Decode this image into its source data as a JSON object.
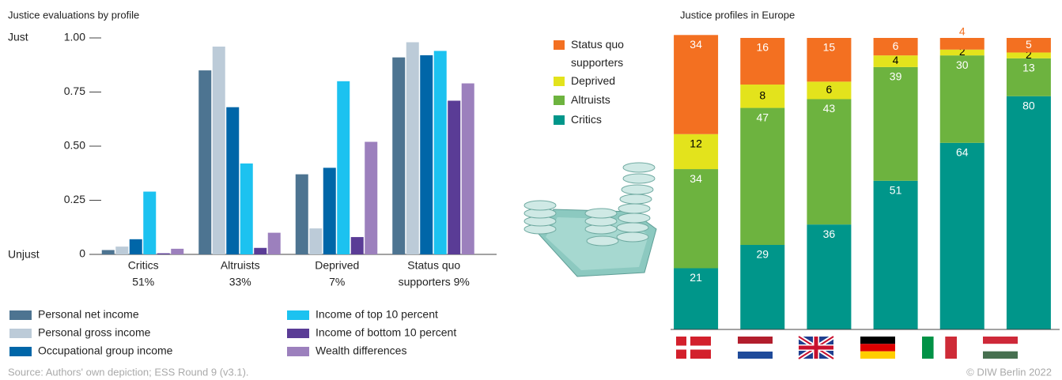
{
  "chart_data": [
    {
      "type": "grouped_bar",
      "title": "Justice evaluations by profile",
      "categories": [
        [
          "Critics",
          "51%"
        ],
        [
          "Altruists",
          "33%"
        ],
        [
          "Deprived",
          "7%"
        ],
        [
          "Status quo",
          "supporters 9%"
        ]
      ],
      "ylim": [
        0,
        1
      ],
      "yticks": [
        0,
        0.25,
        {
          "value": 0.5,
          "label": "0.50"
        },
        0.75,
        {
          "value": 1,
          "label": "1.00"
        }
      ],
      "y_top_label": "Just",
      "y_bottom_label": "Unjust",
      "series": [
        {
          "name": "Personal net income",
          "color": "#4d7491",
          "values": [
            0.02,
            0.85,
            0.37,
            0.91
          ]
        },
        {
          "name": "Personal gross income",
          "color": "#bccbd8",
          "values": [
            0.036,
            0.96,
            0.12,
            0.98
          ]
        },
        {
          "name": "Occupational group income",
          "color": "#0066a8",
          "values": [
            0.07,
            0.68,
            0.4,
            0.92
          ]
        },
        {
          "name": "Income of top 10 percent",
          "color": "#1cc2f0",
          "values": [
            0.29,
            0.42,
            0.8,
            0.94
          ]
        },
        {
          "name": "Income of bottom 10 percent",
          "color": "#5a3c96",
          "values": [
            0.005,
            0.03,
            0.08,
            0.71
          ]
        },
        {
          "name": "Wealth differences",
          "color": "#9c80bd",
          "values": [
            0.026,
            0.1,
            0.52,
            0.79
          ]
        }
      ]
    },
    {
      "type": "stacked_bar",
      "title": "Justice profiles in Europe",
      "categories": [
        null,
        null,
        null,
        null,
        null,
        null
      ],
      "ylim": [
        0,
        100
      ],
      "series": [
        {
          "name": "Critics",
          "color": "#00968a",
          "values": [
            21,
            29,
            36,
            51,
            64,
            80
          ]
        },
        {
          "name": "Altruists",
          "color": "#6db33f",
          "values": [
            34,
            47,
            43,
            39,
            30,
            13
          ]
        },
        {
          "name": "Deprived",
          "color": "#e3e31c",
          "values": [
            12,
            8,
            6,
            4,
            2,
            2
          ]
        },
        {
          "name": "Status quo supporters",
          "color": "#f37021",
          "values": [
            34,
            16,
            15,
            6,
            4,
            5
          ]
        }
      ]
    }
  ],
  "source": "Source: Authors' own depiction; ESS Round 9 (v3.1).",
  "credit": "© DIW Berlin 2022"
}
